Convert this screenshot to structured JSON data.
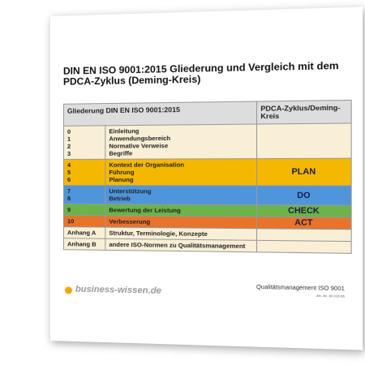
{
  "header": {
    "title": "DIN EN ISO 9001:2015 Gliederung und Vergleich mit dem PDCA-Zyklus (Deming-Kreis)"
  },
  "table": {
    "header": [
      "Gliederung DIN EN ISO 9001:2015",
      "PDCA-Zyklus/Deming-Kreis"
    ],
    "rows": [
      {
        "numbers": [
          "0",
          "1",
          "2",
          "3"
        ],
        "items": [
          "Einleitung",
          "Anwendungsbereich",
          "Normative Verweise",
          "Begriffe"
        ]
      },
      {
        "numbers": [
          "4",
          "5",
          "6"
        ],
        "items": [
          "Kontext der Organisation",
          "Führung",
          "Planung"
        ],
        "pdca": "PLAN"
      },
      {
        "numbers": [
          "7",
          "8"
        ],
        "items": [
          "Unterstützung",
          "Betrieb"
        ],
        "pdca": "DO"
      },
      {
        "numbers": [
          "9"
        ],
        "items": [
          "Bewertung der Leistung"
        ],
        "pdca": "CHECK"
      },
      {
        "numbers": [
          "10"
        ],
        "items": [
          "Verbesserung"
        ],
        "pdca": "ACT"
      },
      {
        "numbers": [
          "Anhang A"
        ],
        "items": [
          "Struktur, Terminologie, Konzepte"
        ]
      },
      {
        "numbers": [
          "Anhang B"
        ],
        "items": [
          "andere ISO-Normen zu Qualitätsmanagement"
        ]
      }
    ]
  },
  "footer": {
    "brand": "business-wissen.de",
    "product": "Qualitätsmanagement ISO 9001",
    "article": "Art.-Nr. 30 015 06"
  }
}
